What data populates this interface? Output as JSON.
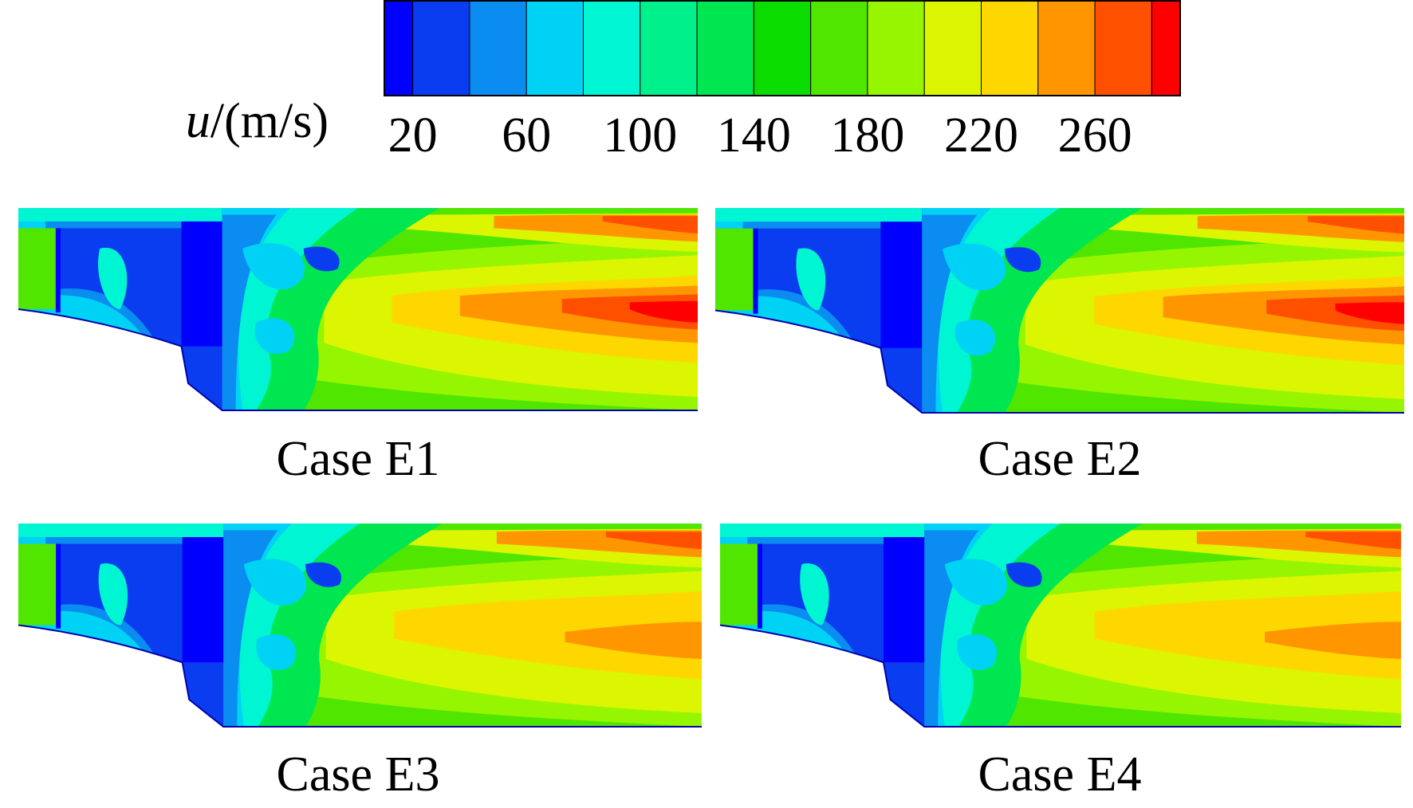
{
  "colorbar": {
    "label_symbol": "u",
    "label_unit": "/(m/s)",
    "lim": [
      10,
      290
    ],
    "ticks": [
      20,
      60,
      100,
      140,
      180,
      220,
      260
    ],
    "colors": [
      "#0000ff",
      "#0a3cf0",
      "#0a8cf0",
      "#00d2f5",
      "#00f5d2",
      "#00f08c",
      "#00e650",
      "#0adc00",
      "#50e600",
      "#96f500",
      "#dcf500",
      "#ffd700",
      "#ff9600",
      "#ff5000",
      "#ff0000"
    ]
  },
  "panels": [
    {
      "caption": "Case E1"
    },
    {
      "caption": "Case E2"
    },
    {
      "caption": "Case E3"
    },
    {
      "caption": "Case E4"
    }
  ]
}
